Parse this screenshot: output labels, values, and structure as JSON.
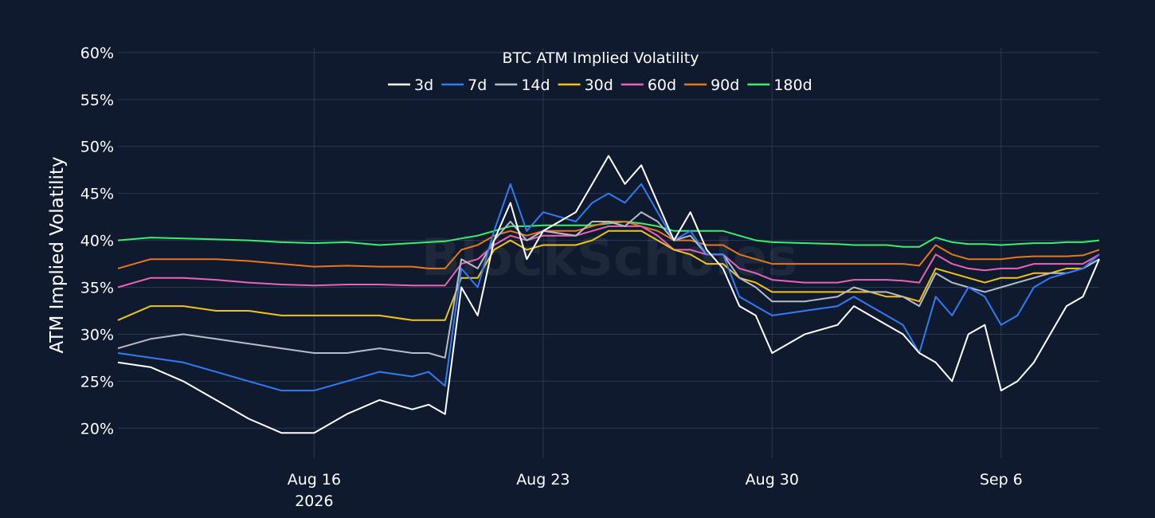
{
  "chart_data": {
    "type": "line",
    "title": "BTC ATM Implied Volatility",
    "ylabel": "ATM Implied Volatility",
    "xlabel": "",
    "watermark": "BlockScholes",
    "background": "#101a2e",
    "grid": true,
    "legend_position": "top-center",
    "x_ticks": [
      {
        "date": "2026-08-16",
        "label": "Aug 16",
        "sublabel": "2026"
      },
      {
        "date": "2026-08-23",
        "label": "Aug 23",
        "sublabel": ""
      },
      {
        "date": "2026-08-30",
        "label": "Aug 30",
        "sublabel": ""
      },
      {
        "date": "2026-09-06",
        "label": "Sep 6",
        "sublabel": ""
      }
    ],
    "xlim": [
      "2026-08-10",
      "2026-09-09"
    ],
    "y_ticks": [
      {
        "value": 20,
        "label": "20%"
      },
      {
        "value": 25,
        "label": "25%"
      },
      {
        "value": 30,
        "label": "30%"
      },
      {
        "value": 35,
        "label": "35%"
      },
      {
        "value": 40,
        "label": "40%"
      },
      {
        "value": 45,
        "label": "45%"
      },
      {
        "value": 50,
        "label": "50%"
      },
      {
        "value": 55,
        "label": "55%"
      },
      {
        "value": 60,
        "label": "60%"
      }
    ],
    "ylim": [
      16.8,
      60.5
    ],
    "x": [
      "2026-08-10",
      "2026-08-11",
      "2026-08-12",
      "2026-08-13",
      "2026-08-14",
      "2026-08-15",
      "2026-08-16",
      "2026-08-17",
      "2026-08-18",
      "2026-08-19",
      "2026-08-19T12:00",
      "2026-08-20",
      "2026-08-20T12:00",
      "2026-08-21",
      "2026-08-21T12:00",
      "2026-08-22",
      "2026-08-22T12:00",
      "2026-08-23",
      "2026-08-24",
      "2026-08-24T12:00",
      "2026-08-25",
      "2026-08-25T12:00",
      "2026-08-26",
      "2026-08-26T12:00",
      "2026-08-27",
      "2026-08-27T12:00",
      "2026-08-28",
      "2026-08-28T12:00",
      "2026-08-29",
      "2026-08-29T12:00",
      "2026-08-30",
      "2026-08-31",
      "2026-09-01",
      "2026-09-01T12:00",
      "2026-09-02",
      "2026-09-02T12:00",
      "2026-09-03",
      "2026-09-03T12:00",
      "2026-09-04",
      "2026-09-04T12:00",
      "2026-09-05",
      "2026-09-05T12:00",
      "2026-09-06",
      "2026-09-06T12:00",
      "2026-09-07",
      "2026-09-07T12:00",
      "2026-09-08",
      "2026-09-08T12:00",
      "2026-09-09"
    ],
    "series": [
      {
        "name": "3d",
        "color": "#ffffff",
        "values": [
          27,
          26.5,
          25,
          23,
          21,
          19.5,
          19.5,
          21.5,
          23,
          22,
          22.5,
          21.5,
          35,
          32,
          40,
          44,
          38,
          41,
          43,
          46,
          49,
          46,
          48,
          44,
          40,
          43,
          39,
          37,
          33,
          32,
          28,
          30,
          31,
          33,
          32,
          31,
          30,
          28,
          27,
          25,
          30,
          31,
          24,
          25,
          27,
          30,
          33,
          34,
          38
        ]
      },
      {
        "name": "7d",
        "color": "#2f7cf6",
        "values": [
          28,
          27.5,
          27,
          26,
          25,
          24,
          24,
          25,
          26,
          25.5,
          26,
          24.5,
          37,
          35,
          41,
          46,
          41,
          43,
          42,
          44,
          45,
          44,
          46,
          43,
          40,
          41,
          38.5,
          38.5,
          34,
          33,
          32,
          32.5,
          33,
          34,
          33,
          32,
          31,
          28,
          34,
          32,
          35,
          34,
          31,
          32,
          35,
          36,
          36.5,
          37,
          38.5
        ]
      },
      {
        "name": "14d",
        "color": "#b8bcc8",
        "values": [
          28.5,
          29.5,
          30,
          29.5,
          29,
          28.5,
          28,
          28,
          28.5,
          28,
          28,
          27.5,
          38,
          37,
          40,
          42,
          40,
          41,
          40.5,
          42,
          42,
          41.5,
          43,
          42,
          40,
          40.5,
          38.5,
          38.5,
          36,
          35,
          33.5,
          33.5,
          34,
          35,
          34.5,
          34.5,
          34,
          33,
          36.5,
          35.5,
          35,
          34.5,
          35,
          35.5,
          36,
          36.5,
          36.5,
          37,
          38
        ]
      },
      {
        "name": "30d",
        "color": "#f0c419",
        "values": [
          31.5,
          33,
          33,
          32.5,
          32.5,
          32,
          32,
          32,
          32,
          31.5,
          31.5,
          31.5,
          36,
          36,
          39,
          40,
          39,
          39.5,
          39.5,
          40,
          41,
          41,
          41,
          40,
          39,
          38.5,
          37.5,
          37.5,
          36,
          35.5,
          34.5,
          34.5,
          34.5,
          34.5,
          34.5,
          34,
          34,
          33.5,
          37,
          36.5,
          36,
          35.5,
          36,
          36,
          36.5,
          36.5,
          37,
          37,
          38
        ]
      },
      {
        "name": "60d",
        "color": "#ea62b9",
        "values": [
          35,
          36,
          36,
          35.8,
          35.5,
          35.3,
          35.2,
          35.3,
          35.3,
          35.2,
          35.2,
          35.2,
          37.5,
          38,
          39.5,
          40.5,
          40,
          40.5,
          40.5,
          41,
          41.5,
          41.5,
          41.5,
          40.5,
          39,
          39,
          38.5,
          38.5,
          37,
          36.5,
          35.8,
          35.5,
          35.5,
          35.8,
          35.8,
          35.8,
          35.7,
          35.5,
          38.5,
          37.5,
          37,
          36.8,
          37,
          37,
          37.5,
          37.5,
          37.5,
          37.5,
          38.5
        ]
      },
      {
        "name": "90d",
        "color": "#e9771a",
        "values": [
          37,
          38,
          38,
          38,
          37.8,
          37.5,
          37.2,
          37.3,
          37.2,
          37.2,
          37,
          37,
          39,
          39.5,
          40.5,
          41,
          40.5,
          41,
          41,
          41.5,
          42,
          42,
          41.5,
          41,
          40,
          40,
          39.5,
          39.5,
          38.5,
          38,
          37.5,
          37.5,
          37.5,
          37.5,
          37.5,
          37.5,
          37.5,
          37.3,
          39.5,
          38.5,
          38,
          38,
          38,
          38.2,
          38.3,
          38.3,
          38.3,
          38.4,
          39
        ]
      },
      {
        "name": "180d",
        "color": "#38f06b",
        "values": [
          40,
          40.3,
          40.2,
          40.1,
          40,
          39.8,
          39.7,
          39.8,
          39.5,
          39.7,
          39.8,
          39.9,
          40.2,
          40.5,
          41,
          41.5,
          41.5,
          41.6,
          41.6,
          41.6,
          41.8,
          42,
          41.8,
          41.5,
          41,
          41,
          41,
          41,
          40.5,
          40,
          39.8,
          39.7,
          39.6,
          39.5,
          39.5,
          39.5,
          39.3,
          39.3,
          40.3,
          39.8,
          39.6,
          39.6,
          39.5,
          39.6,
          39.7,
          39.7,
          39.8,
          39.8,
          40
        ]
      }
    ]
  }
}
